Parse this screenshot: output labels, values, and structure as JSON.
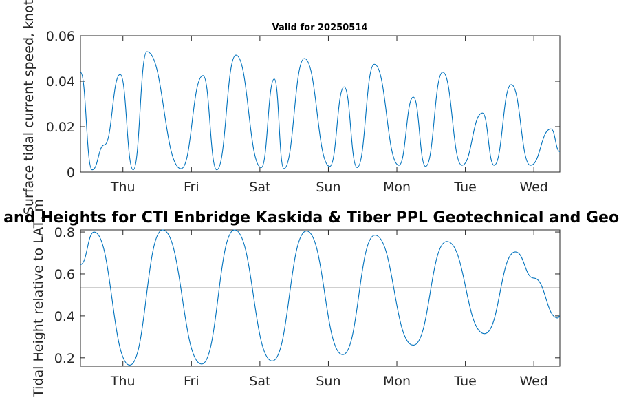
{
  "chart_data": [
    {
      "type": "line",
      "title": "Valid for 20250514",
      "xlabel": "",
      "ylabel": "Surface tidal current speed, knots",
      "xlim": [
        0,
        7
      ],
      "ylim": [
        0,
        0.06
      ],
      "xticks": [
        0.62,
        1.62,
        2.62,
        3.62,
        4.62,
        5.62,
        6.62
      ],
      "xtick_labels": [
        "Thu",
        "Fri",
        "Sat",
        "Sun",
        "Mon",
        "Tue",
        "Wed"
      ],
      "yticks": [
        0,
        0.02,
        0.04,
        0.06
      ],
      "ytick_labels": [
        "0",
        "0.02",
        "0.04",
        "0.06"
      ],
      "grid": false,
      "series": [
        {
          "color": "#0072BD",
          "x": [
            0.0,
            0.17,
            0.35,
            0.58,
            0.77,
            0.97,
            1.47,
            1.79,
            1.99,
            2.27,
            2.64,
            2.83,
            2.97,
            3.27,
            3.64,
            3.85,
            4.04,
            4.29,
            4.65,
            4.86,
            5.04,
            5.29,
            5.57,
            5.87,
            6.04,
            6.29,
            6.57,
            6.87,
            7.0
          ],
          "y": [
            0.044,
            0.001,
            0.012,
            0.043,
            0.001,
            0.053,
            0.0015,
            0.0425,
            0.001,
            0.0515,
            0.002,
            0.041,
            0.0015,
            0.05,
            0.0025,
            0.0375,
            0.002,
            0.0475,
            0.003,
            0.033,
            0.0025,
            0.044,
            0.003,
            0.026,
            0.003,
            0.0385,
            0.003,
            0.019,
            0.009
          ]
        }
      ]
    },
    {
      "type": "line",
      "title": "Tidal Currents and Heights for CTI Enbridge  Kaskida & Tiber PPL Geotechnical and Geophysical Surveys",
      "xlabel": "",
      "ylabel": "Tidal Height relative to LAT, m",
      "xlim": [
        0,
        7
      ],
      "ylim": [
        0.16,
        0.81
      ],
      "xticks": [
        0.62,
        1.62,
        2.62,
        3.62,
        4.62,
        5.62,
        6.62
      ],
      "xtick_labels": [
        "Thu",
        "Fri",
        "Sat",
        "Sun",
        "Mon",
        "Tue",
        "Wed"
      ],
      "yticks": [
        0.2,
        0.4,
        0.6,
        0.8
      ],
      "ytick_labels": [
        "0.2",
        "0.4",
        "0.6",
        "0.8"
      ],
      "grid": false,
      "reference_line": 0.533,
      "series": [
        {
          "color": "#0072BD",
          "x": [
            0.0,
            0.2,
            0.72,
            1.2,
            1.77,
            2.25,
            2.8,
            3.3,
            3.83,
            4.3,
            4.86,
            5.35,
            5.9,
            6.35,
            6.62,
            6.97,
            7.0
          ],
          "y": [
            0.645,
            0.8,
            0.165,
            0.81,
            0.17,
            0.81,
            0.185,
            0.805,
            0.215,
            0.785,
            0.26,
            0.755,
            0.315,
            0.705,
            0.58,
            0.39,
            0.4
          ]
        }
      ]
    }
  ]
}
